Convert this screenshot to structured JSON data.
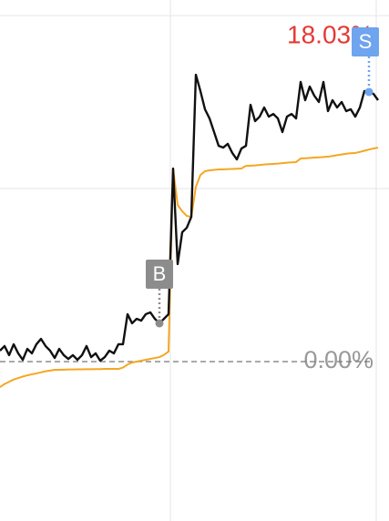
{
  "chart_data": {
    "type": "line",
    "categories": [
      null,
      null,
      null,
      null,
      null,
      null,
      null,
      null,
      null,
      null,
      null,
      null,
      null,
      null,
      null,
      null,
      null,
      null,
      null,
      null,
      null,
      null,
      null,
      null,
      null,
      null,
      null,
      null,
      null,
      null,
      null,
      null,
      null,
      null,
      null,
      null,
      null,
      null,
      null,
      null,
      null,
      null,
      null,
      null,
      null,
      null,
      null,
      null,
      null,
      null,
      null,
      null,
      null,
      null,
      null,
      null,
      null,
      null,
      null,
      null,
      null,
      null,
      null,
      null,
      null,
      null,
      null,
      null,
      null,
      null,
      null,
      null,
      null,
      null,
      null,
      null,
      null,
      null,
      null,
      null,
      null,
      null,
      null,
      null
    ],
    "ylim": [
      -10.66,
      24.18
    ],
    "grid_y": [
      11.57,
      23.14
    ],
    "grid_x": [
      37.4,
      82.6
    ],
    "series": [
      {
        "color": "#111111",
        "values": [
          0.73,
          1.04,
          0.43,
          1.16,
          0.55,
          0.12,
          0.85,
          0.55,
          1.16,
          1.52,
          1.04,
          0.73,
          0.24,
          0.85,
          0.43,
          0.18,
          0.43,
          0.12,
          0.43,
          1.04,
          0.3,
          0.55,
          0.06,
          0.3,
          0.73,
          0.55,
          1.16,
          1.16,
          3.17,
          2.56,
          2.86,
          2.74,
          3.17,
          3.29,
          2.86,
          2.56,
          2.86,
          3.17,
          12.91,
          6.52,
          8.65,
          8.95,
          9.68,
          19.18,
          18.09,
          16.87,
          16.26,
          15.35,
          14.43,
          14.31,
          14.56,
          13.95,
          13.52,
          14.25,
          14.43,
          17.17,
          16.08,
          16.38,
          16.99,
          16.38,
          16.56,
          16.26,
          15.35,
          16.38,
          16.56,
          16.26,
          18.7,
          17.48,
          18.39,
          17.78,
          17.36,
          18.7,
          16.75,
          17.48,
          16.99,
          17.36,
          16.75,
          16.87,
          16.38,
          16.99,
          18.09,
          18.03,
          17.9,
          17.48
        ]
      },
      {
        "color": "#f5a623",
        "values": [
          -1.71,
          -1.5,
          -1.35,
          -1.2,
          -1.1,
          -1.0,
          -0.92,
          -0.85,
          -0.79,
          -0.72,
          -0.65,
          -0.6,
          -0.55,
          -0.55,
          -0.54,
          -0.53,
          -0.53,
          -0.52,
          -0.52,
          -0.51,
          -0.51,
          -0.5,
          -0.5,
          -0.49,
          -0.49,
          -0.49,
          -0.49,
          -0.4,
          -0.2,
          -0.06,
          0.0,
          0.06,
          0.12,
          0.18,
          0.24,
          0.3,
          0.45,
          0.67,
          12.91,
          10.48,
          10.05,
          9.74,
          9.68,
          11.69,
          12.48,
          12.73,
          12.79,
          12.82,
          12.85,
          12.85,
          12.87,
          12.88,
          12.9,
          12.91,
          13.09,
          13.1,
          13.12,
          13.15,
          13.18,
          13.2,
          13.22,
          13.24,
          13.27,
          13.3,
          13.32,
          13.34,
          13.58,
          13.6,
          13.62,
          13.64,
          13.66,
          13.68,
          13.7,
          13.75,
          13.8,
          13.85,
          13.9,
          13.93,
          13.95,
          14.02,
          14.1,
          14.18,
          14.25,
          14.31
        ]
      }
    ],
    "reference": {
      "value": 0,
      "label": "0.00%",
      "color": "#999999"
    },
    "markers": [
      {
        "label": "B",
        "index": 35,
        "series": 0,
        "color": "#8c8c8c"
      },
      {
        "label": "S",
        "index": 81,
        "series": 0,
        "color": "#6fa4ee",
        "annotation": "18.03%",
        "annotation_color": "#e53935"
      }
    ]
  }
}
